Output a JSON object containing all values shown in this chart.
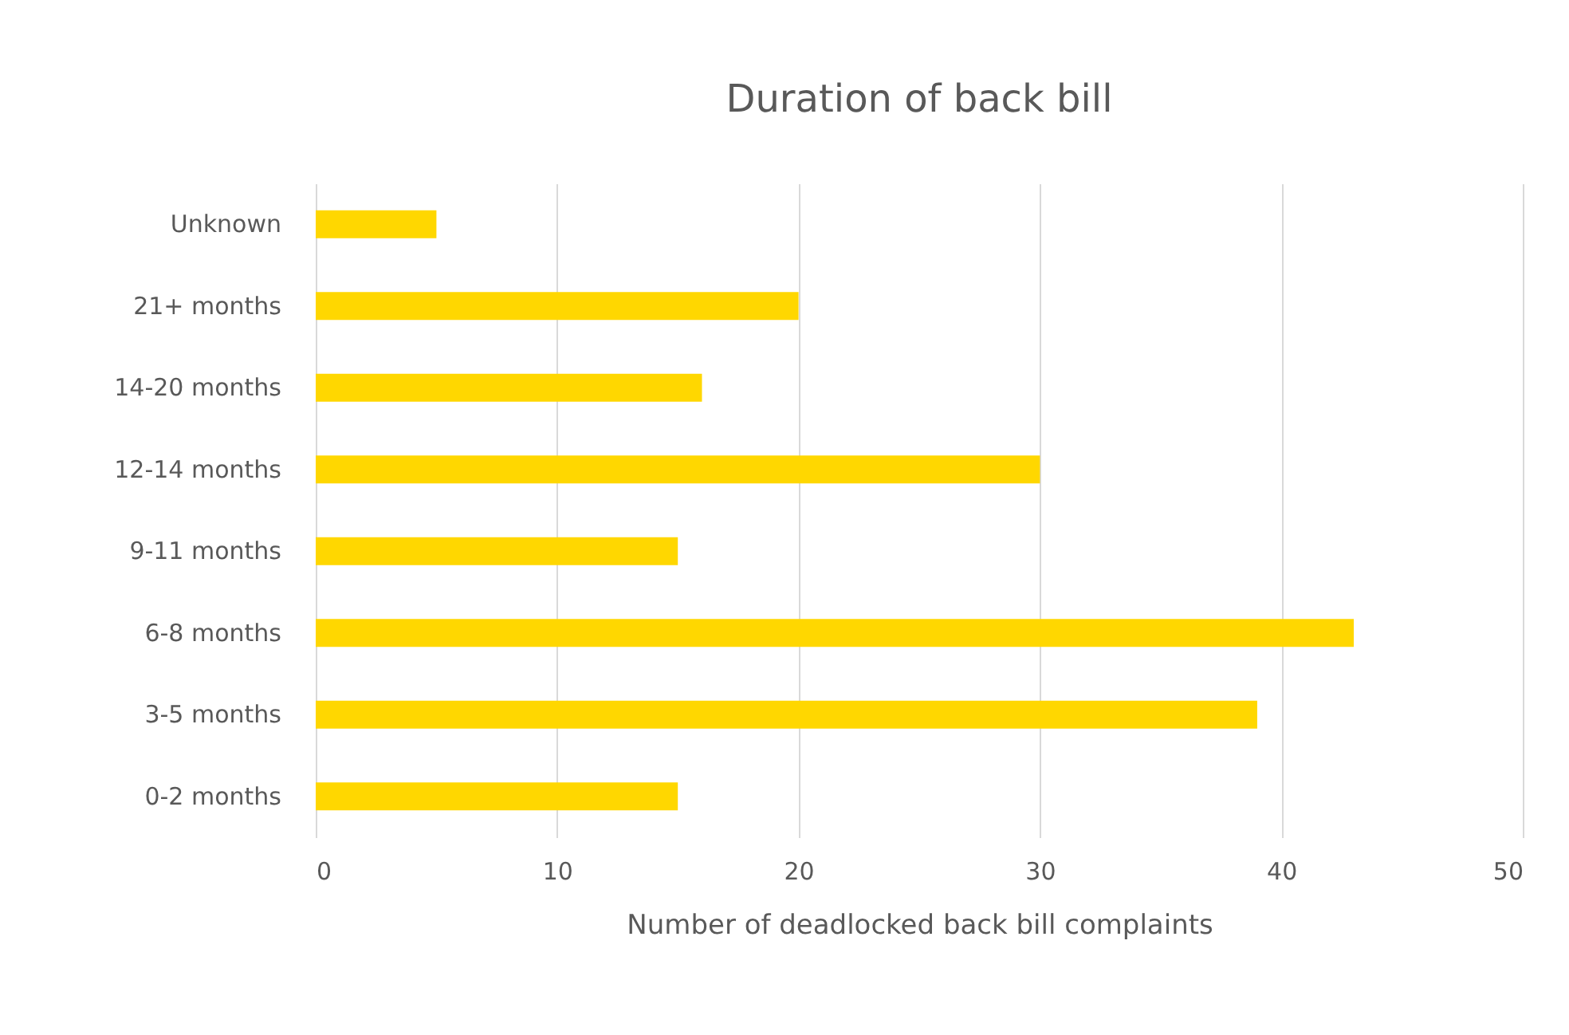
{
  "chart_data": {
    "type": "bar",
    "orientation": "horizontal",
    "title": "Duration of back bill",
    "xlabel": "Number of deadlocked back bill complaints",
    "categories": [
      "Unknown",
      "21+ months",
      "14-20 months",
      "12-14 months",
      "9-11 months",
      "6-8 months",
      "3-5 months",
      "0-2 months"
    ],
    "values": [
      5,
      20,
      16,
      30,
      15,
      43,
      39,
      15
    ],
    "color": "#ffd700",
    "xlim": [
      0,
      50
    ],
    "xticks": [
      0,
      10,
      20,
      30,
      40,
      50
    ],
    "grid": "x"
  }
}
